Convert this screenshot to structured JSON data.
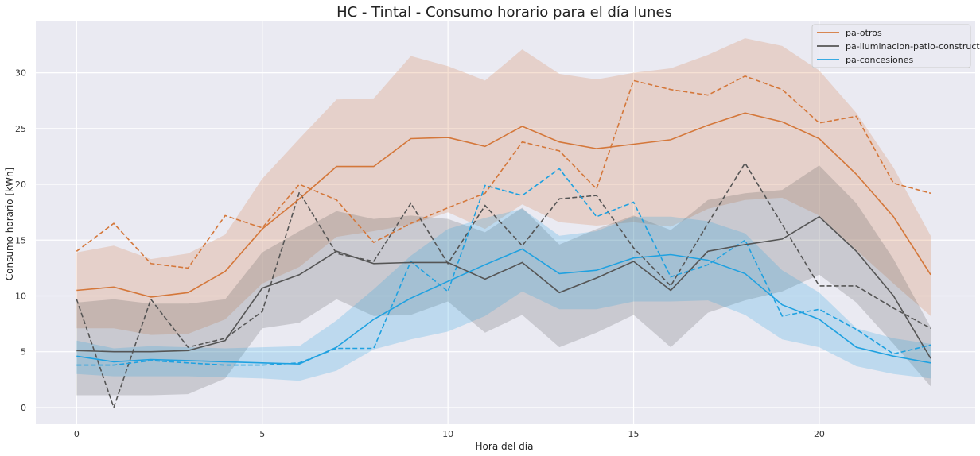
{
  "chart_data": {
    "type": "line",
    "title": "HC - Tintal - Consumo horario para el día lunes",
    "xlabel": "Hora del día",
    "ylabel": "Consumo horario [kWh]",
    "xlim": [
      -1.1,
      24.2
    ],
    "ylim": [
      -1.5,
      34.6
    ],
    "xticks": [
      0,
      5,
      10,
      15,
      20
    ],
    "yticks": [
      0,
      5,
      10,
      15,
      20,
      25,
      30
    ],
    "grid": true,
    "legend_position": "top-right",
    "x": [
      0,
      1,
      2,
      3,
      4,
      5,
      6,
      7,
      8,
      9,
      10,
      11,
      12,
      13,
      14,
      15,
      16,
      17,
      18,
      19,
      20,
      21,
      22,
      23
    ],
    "series": [
      {
        "name": "pa-otros",
        "color": "#d4773a",
        "mean": [
          10.5,
          10.8,
          9.9,
          10.3,
          12.2,
          16.0,
          18.7,
          21.6,
          21.6,
          24.1,
          24.2,
          23.4,
          25.2,
          23.8,
          23.2,
          23.6,
          24.0,
          25.3,
          26.4,
          25.6,
          24.1,
          20.9,
          17.1,
          11.9
        ],
        "lower": [
          7.1,
          7.1,
          6.5,
          6.6,
          7.9,
          11.1,
          12.6,
          15.3,
          15.8,
          16.4,
          17.5,
          16.0,
          18.2,
          16.6,
          16.3,
          16.6,
          16.2,
          17.8,
          18.6,
          18.8,
          17.2,
          14.1,
          11.1,
          8.2
        ],
        "upper": [
          13.9,
          14.5,
          13.3,
          13.8,
          15.5,
          20.5,
          24.1,
          27.6,
          27.7,
          31.5,
          30.6,
          29.3,
          32.1,
          29.9,
          29.4,
          30.0,
          30.4,
          31.6,
          33.1,
          32.4,
          30.2,
          26.4,
          21.5,
          15.4
        ],
        "reference": [
          14.0,
          16.5,
          12.9,
          12.5,
          17.2,
          16.1,
          20.0,
          18.6,
          14.8,
          16.5,
          17.9,
          19.2,
          23.8,
          23.0,
          19.6,
          29.3,
          28.5,
          28.0,
          29.7,
          28.5,
          25.5,
          26.1,
          20.1,
          19.2
        ]
      },
      {
        "name": "pa-iluminacion-patio-constructor",
        "color": "#555555",
        "mean": [
          5.1,
          5.0,
          5.0,
          5.1,
          6.0,
          10.7,
          11.9,
          14.0,
          12.9,
          13.0,
          13.0,
          11.5,
          13.0,
          10.3,
          11.6,
          13.1,
          10.5,
          14.0,
          14.6,
          15.1,
          17.1,
          14.0,
          10.0,
          4.4
        ],
        "lower": [
          1.1,
          1.1,
          1.1,
          1.2,
          2.6,
          7.1,
          7.6,
          9.7,
          8.2,
          8.3,
          9.5,
          6.7,
          8.3,
          5.4,
          6.7,
          8.3,
          5.4,
          8.5,
          9.6,
          10.4,
          11.9,
          9.4,
          5.7,
          1.9
        ],
        "upper": [
          9.4,
          9.7,
          9.3,
          9.3,
          9.7,
          13.9,
          15.8,
          17.6,
          16.9,
          17.2,
          16.9,
          15.7,
          17.9,
          14.6,
          16.0,
          17.2,
          15.9,
          18.6,
          19.2,
          19.5,
          21.7,
          18.3,
          13.3,
          7.2
        ],
        "reference": [
          9.7,
          0.0,
          9.7,
          5.4,
          6.2,
          8.6,
          19.3,
          13.8,
          13.1,
          18.3,
          12.9,
          18.1,
          14.5,
          18.7,
          19.0,
          14.3,
          10.9,
          16.5,
          21.9,
          16.4,
          10.9,
          10.9,
          8.9,
          7.1
        ]
      },
      {
        "name": "pa-concesiones",
        "color": "#1fa1e0",
        "mean": [
          4.6,
          4.1,
          4.3,
          4.2,
          4.1,
          4.0,
          3.9,
          5.4,
          7.9,
          9.8,
          11.3,
          12.8,
          14.2,
          12.0,
          12.3,
          13.4,
          13.7,
          13.2,
          12.0,
          9.2,
          7.9,
          5.4,
          4.6,
          4.0
        ],
        "lower": [
          3.0,
          2.8,
          2.8,
          2.8,
          2.7,
          2.6,
          2.4,
          3.3,
          5.2,
          6.1,
          6.8,
          8.2,
          10.4,
          8.8,
          8.8,
          9.5,
          9.5,
          9.6,
          8.3,
          6.1,
          5.4,
          3.7,
          3.0,
          2.6
        ],
        "upper": [
          6.0,
          5.3,
          5.5,
          5.4,
          5.3,
          5.4,
          5.5,
          7.8,
          10.6,
          13.6,
          16.0,
          17.0,
          17.8,
          15.4,
          15.8,
          17.1,
          17.1,
          16.7,
          15.6,
          12.3,
          10.3,
          7.1,
          6.2,
          5.7
        ],
        "reference": [
          3.8,
          3.8,
          4.2,
          4.0,
          3.8,
          3.8,
          4.0,
          5.3,
          5.3,
          13.1,
          10.4,
          19.9,
          19.0,
          21.4,
          17.1,
          18.4,
          11.7,
          12.8,
          15.0,
          8.2,
          8.8,
          7.0,
          4.8,
          5.6
        ]
      }
    ]
  }
}
